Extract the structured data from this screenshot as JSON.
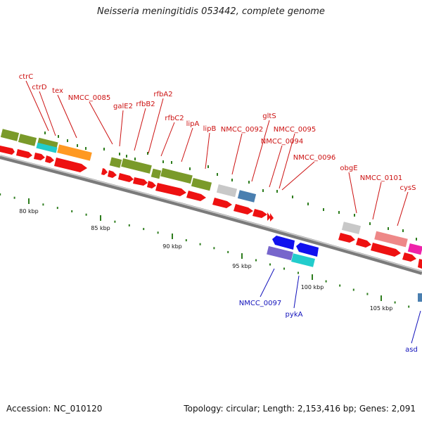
{
  "title": "Neisseria meningitidis 053442, complete genome",
  "footer": {
    "accession": "Accession: NC_010120",
    "stats": "Topology: circular; Length: 2,153,416 bp; Genes: 2,091"
  },
  "colors": {
    "label_top": "#cc1111",
    "label_bottom": "#1111bb",
    "backbone": "#888888",
    "tick": "#2e7d1e",
    "cds": "#ee1111",
    "green_gene": "#7a9a2a",
    "cyan_gene": "#22cccc",
    "orange_gene": "#ff9922",
    "gray_gene": "#c8c8c8",
    "steel_gene": "#4a7fb0",
    "pink_gene": "#ee8888",
    "magenta_gene": "#ee22aa",
    "blue_gene": "#1111ee",
    "purple_gene": "#7766cc"
  },
  "kbp_labels": [
    {
      "kbp": 80,
      "text": "80 kbp"
    },
    {
      "kbp": 85,
      "text": "85 kbp"
    },
    {
      "kbp": 90,
      "text": "90 kbp"
    },
    {
      "kbp": 95,
      "text": "95 kbp"
    },
    {
      "kbp": 100,
      "text": "100 kbp"
    },
    {
      "kbp": 105,
      "text": "105 kbp"
    }
  ],
  "gene_labels_top": [
    "ctrC",
    "ctrD",
    "tex",
    "NMCC_0085",
    "galE2",
    "rfbB2",
    "rfbA2",
    "rfbC2",
    "lipA",
    "lipB",
    "NMCC_0092",
    "gltS",
    "NMCC_0094",
    "NMCC_0095",
    "NMCC_0096",
    "obgE",
    "NMCC_0101",
    "cysS"
  ],
  "gene_labels_bottom": [
    "NMCC_0097",
    "pykA",
    "asd"
  ]
}
